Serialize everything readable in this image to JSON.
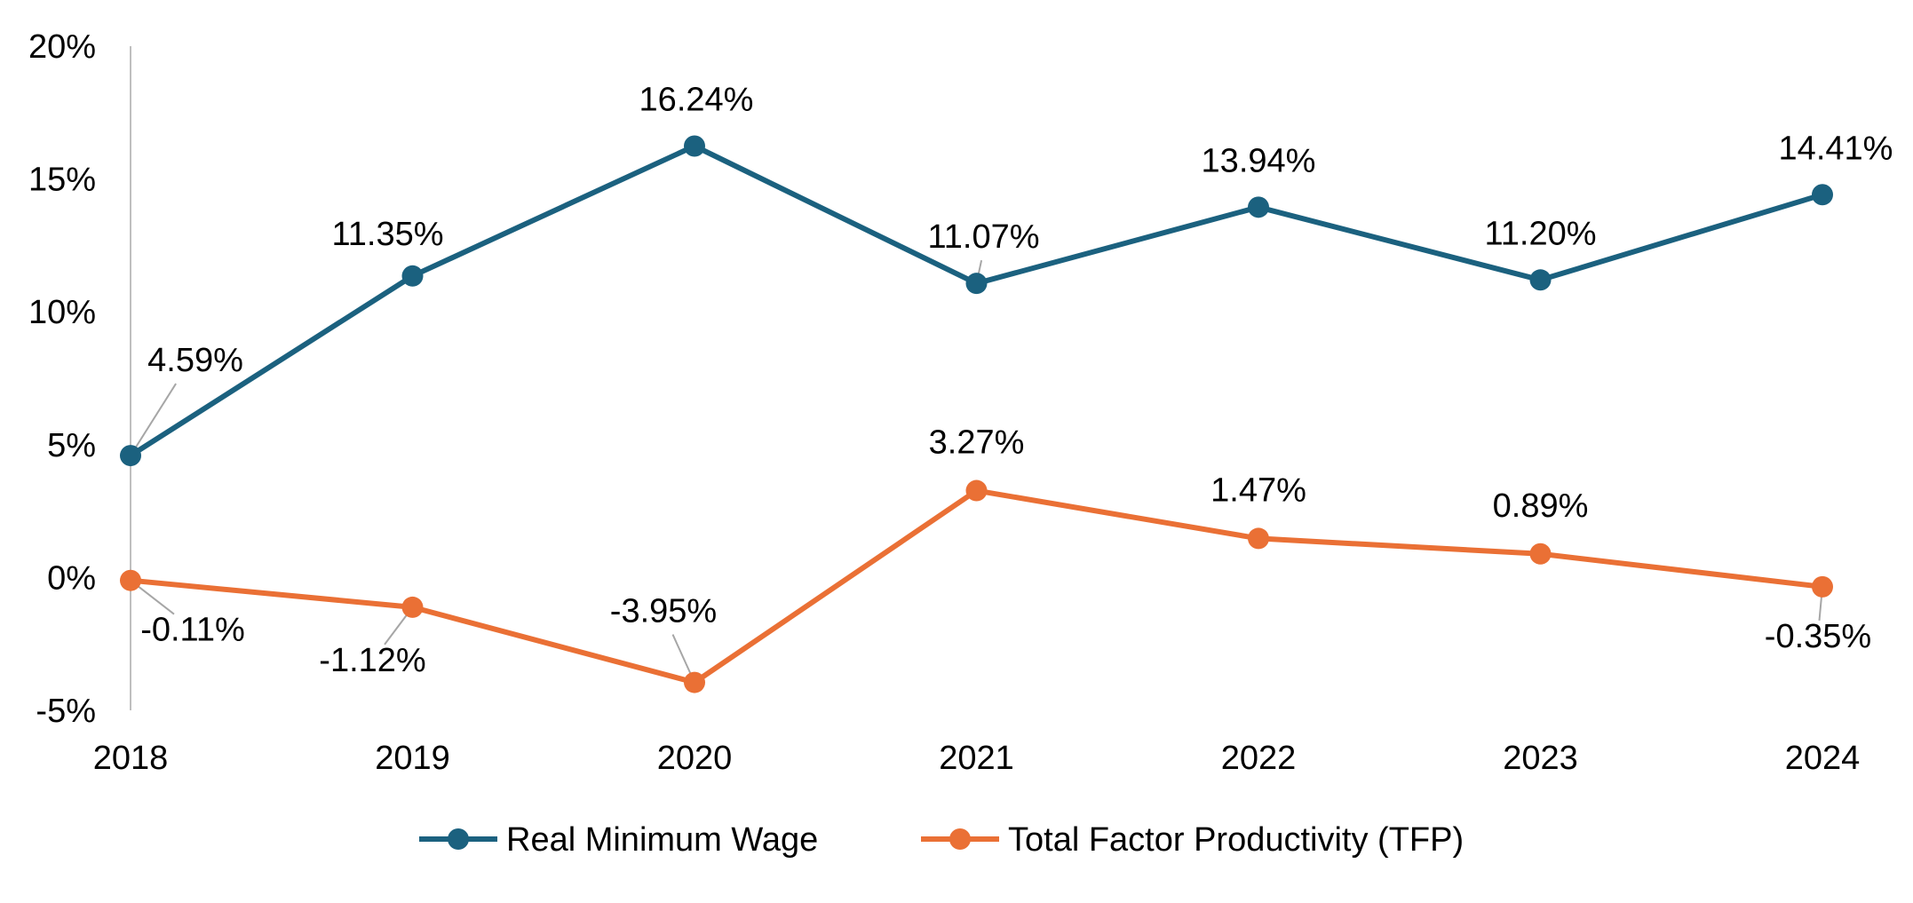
{
  "chart_data": {
    "type": "line",
    "title": "",
    "xlabel": "",
    "ylabel": "",
    "categories": [
      "2018",
      "2019",
      "2020",
      "2021",
      "2022",
      "2023",
      "2024"
    ],
    "ylim": [
      -5,
      20
    ],
    "yticks": [
      -5,
      0,
      5,
      10,
      15,
      20
    ],
    "ytick_labels": [
      "-5%",
      "0%",
      "5%",
      "10%",
      "15%",
      "20%"
    ],
    "grid": false,
    "legend_position": "bottom",
    "series": [
      {
        "name": "Real Minimum Wage",
        "color": "#1b617f",
        "values": [
          4.59,
          11.35,
          16.24,
          11.07,
          13.94,
          11.2,
          14.41
        ],
        "labels": [
          "4.59%",
          "11.35%",
          "16.24%",
          "11.07%",
          "13.94%",
          "11.20%",
          "14.41%"
        ]
      },
      {
        "name": "Total Factor Productivity (TFP)",
        "color": "#ea7035",
        "values": [
          -0.11,
          -1.12,
          -3.95,
          3.27,
          1.47,
          0.89,
          -0.35
        ],
        "labels": [
          "-0.11%",
          "-1.12%",
          "-3.95%",
          "3.27%",
          "1.47%",
          "0.89%",
          "-0.35%"
        ]
      }
    ]
  }
}
